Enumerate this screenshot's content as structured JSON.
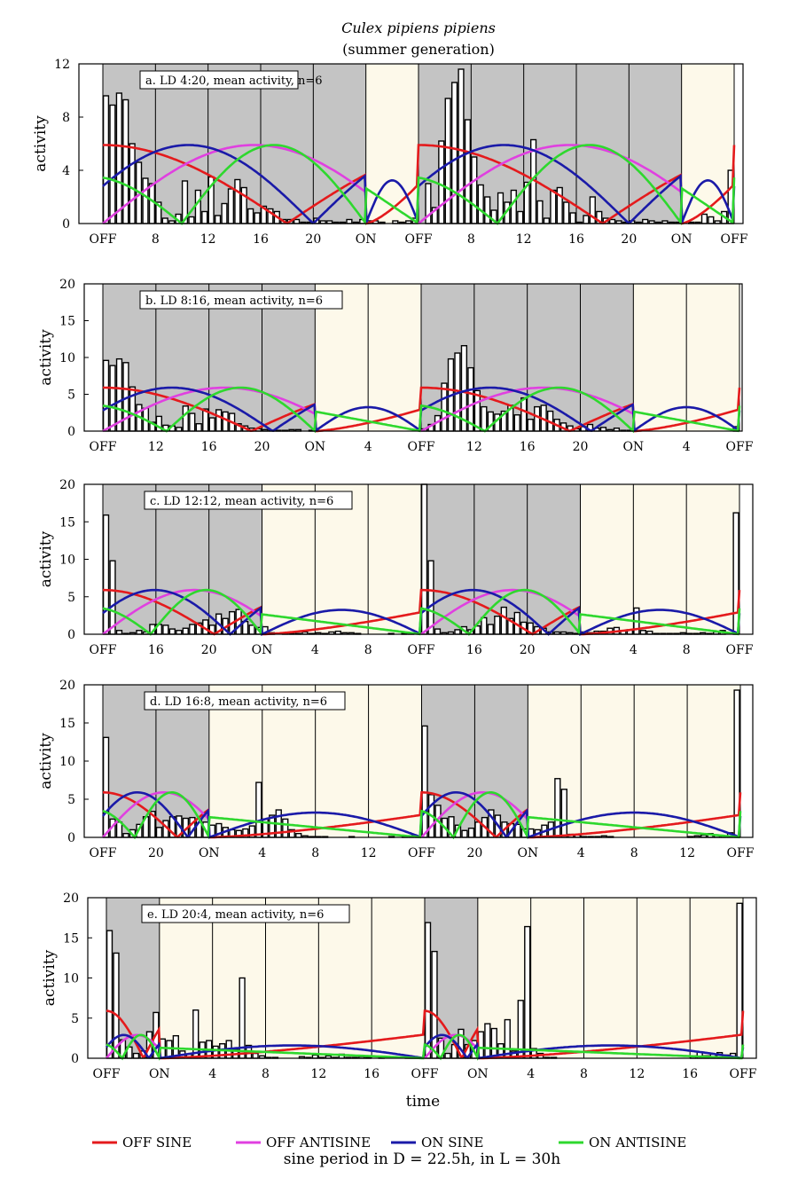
{
  "figure": {
    "title": "Culex pipiens pipiens",
    "subtitle": "(summer generation)",
    "xlabel": "time",
    "footer": "sine period in D = 22.5h, in L = 30h"
  },
  "legend": [
    {
      "label": "OFF SINE",
      "color": "#e41a1c"
    },
    {
      "label": "OFF ANTISINE",
      "color": "#e040e0"
    },
    {
      "label": "ON SINE",
      "color": "#1a1aa8"
    },
    {
      "label": "ON ANTISINE",
      "color": "#2ed82e"
    }
  ],
  "colors": {
    "dark": "#c4c4c4",
    "light": "#fdf9ea",
    "bar_fill": "#ffffff",
    "bar_stroke": "#000000"
  },
  "chart_data": [
    {
      "type": "bar",
      "label": "a. LD 4:20, mean activity, n=6",
      "ylabel": "activity",
      "ylim": [
        0,
        12
      ],
      "yticks": [
        0,
        4,
        8,
        12
      ],
      "hours": 48,
      "dark_hours": [
        [
          0,
          20
        ],
        [
          24,
          44
        ]
      ],
      "xticks": [
        {
          "h": 0,
          "label": "OFF"
        },
        {
          "h": 4,
          "label": "8"
        },
        {
          "h": 8,
          "label": "12"
        },
        {
          "h": 12,
          "label": "16"
        },
        {
          "h": 16,
          "label": "20"
        },
        {
          "h": 20,
          "label": "ON"
        },
        {
          "h": 24,
          "label": "OFF"
        },
        {
          "h": 28,
          "label": "8"
        },
        {
          "h": 32,
          "label": "12"
        },
        {
          "h": 36,
          "label": "16"
        },
        {
          "h": 40,
          "label": "20"
        },
        {
          "h": 44,
          "label": "ON"
        },
        {
          "h": 48,
          "label": "OFF"
        }
      ],
      "activity": [
        9.6,
        8.9,
        9.8,
        9.3,
        6.0,
        4.6,
        3.4,
        3.0,
        1.6,
        0.4,
        0.2,
        0.7,
        3.2,
        0.5,
        2.5,
        0.9,
        3.5,
        0.6,
        1.5,
        2.6,
        3.3,
        2.7,
        1.1,
        0.8,
        1.3,
        1.1,
        0.9,
        0.3,
        0.3,
        0.3,
        0.1,
        0.1,
        0.4,
        0.2,
        0.2,
        0.1,
        0.1,
        0.3,
        0.1,
        0.3,
        0.2,
        0.2,
        0.1,
        0.0,
        0.2,
        0.1,
        0.2,
        0.4,
        0.0,
        3.0,
        1.2,
        6.2,
        9.4,
        10.6,
        11.6,
        7.8,
        5.0,
        2.9,
        2.0,
        1.0,
        2.3,
        1.6,
        2.5,
        0.9,
        3.1,
        6.3,
        1.7,
        0.4,
        2.5,
        2.7,
        1.6,
        0.8,
        0.1,
        0.6,
        2.0,
        0.9,
        0.4,
        0.3,
        0.2,
        0.1,
        0.2,
        0.1,
        0.3,
        0.2,
        0.1,
        0.2,
        0.1,
        0.1,
        0.0,
        0.1,
        0.1,
        0.7,
        0.5,
        0.2,
        0.9,
        4.0
      ],
      "series": {
        "off_sine": 5.9,
        "off_antisine": 5.9,
        "on_sine": 5.9,
        "on_antisine": 5.9
      }
    },
    {
      "type": "bar",
      "label": "b. LD 8:16, mean activity, n=6",
      "ylabel": "activity",
      "ylim": [
        0,
        20
      ],
      "yticks": [
        0,
        5,
        10,
        15,
        20
      ],
      "hours": 48,
      "dark_hours": [
        [
          0,
          16
        ],
        [
          24,
          40
        ]
      ],
      "xticks": [
        {
          "h": 0,
          "label": "OFF"
        },
        {
          "h": 4,
          "label": "12"
        },
        {
          "h": 8,
          "label": "16"
        },
        {
          "h": 12,
          "label": "20"
        },
        {
          "h": 16,
          "label": "ON"
        },
        {
          "h": 20,
          "label": "4"
        },
        {
          "h": 24,
          "label": "OFF"
        },
        {
          "h": 28,
          "label": "12"
        },
        {
          "h": 32,
          "label": "16"
        },
        {
          "h": 36,
          "label": "20"
        },
        {
          "h": 40,
          "label": "ON"
        },
        {
          "h": 44,
          "label": "4"
        },
        {
          "h": 48,
          "label": "OFF"
        }
      ],
      "activity": [
        9.6,
        8.9,
        9.8,
        9.3,
        6.0,
        3.6,
        3.1,
        1.2,
        2.0,
        0.8,
        0.7,
        0.5,
        3.4,
        2.4,
        1.0,
        3.0,
        1.8,
        2.9,
        2.6,
        2.4,
        1.0,
        0.7,
        0.4,
        0.3,
        0.2,
        0.1,
        0.1,
        0.1,
        0.2,
        0.2,
        0.0,
        0.1,
        0.0,
        0.0,
        0.0,
        0.0,
        0.0,
        0.0,
        0.0,
        0.0,
        0.0,
        0.0,
        0.0,
        0.0,
        0.0,
        0.0,
        0.0,
        0.0,
        0.3,
        0.9,
        2.1,
        6.5,
        9.8,
        10.6,
        11.6,
        8.6,
        5.5,
        3.3,
        2.6,
        2.3,
        2.7,
        3.5,
        2.2,
        4.5,
        1.6,
        3.3,
        3.5,
        2.7,
        1.6,
        1.1,
        0.7,
        0.3,
        0.6,
        0.9,
        0.4,
        0.5,
        0.2,
        0.4,
        0.1,
        0.1,
        0.0,
        0.0,
        0.0,
        0.0,
        0.0,
        0.0,
        0.0,
        0.0,
        0.0,
        0.0,
        0.0,
        0.0,
        0.0,
        0.0,
        0.0,
        0.6
      ],
      "series": {
        "off_sine": 5.9,
        "off_antisine": 5.9,
        "on_sine": 5.9,
        "on_antisine": 5.9
      }
    },
    {
      "type": "bar",
      "label": "c. LD 12:12, mean activity, n=6",
      "ylabel": "activity",
      "ylim": [
        0,
        20
      ],
      "yticks": [
        0,
        5,
        10,
        15,
        20
      ],
      "hours": 48,
      "dark_hours": [
        [
          0,
          12
        ],
        [
          24,
          36
        ]
      ],
      "xticks": [
        {
          "h": 0,
          "label": "OFF"
        },
        {
          "h": 4,
          "label": "16"
        },
        {
          "h": 8,
          "label": "20"
        },
        {
          "h": 12,
          "label": "ON"
        },
        {
          "h": 16,
          "label": "4"
        },
        {
          "h": 20,
          "label": "8"
        },
        {
          "h": 24,
          "label": "OFF"
        },
        {
          "h": 28,
          "label": "16"
        },
        {
          "h": 32,
          "label": "20"
        },
        {
          "h": 36,
          "label": "ON"
        },
        {
          "h": 40,
          "label": "4"
        },
        {
          "h": 44,
          "label": "8"
        },
        {
          "h": 48,
          "label": "OFF"
        }
      ],
      "activity": [
        15.9,
        9.8,
        0.5,
        0.1,
        0.2,
        0.5,
        0.3,
        1.3,
        1.3,
        1.2,
        0.7,
        0.5,
        0.8,
        1.3,
        1.5,
        1.9,
        1.2,
        2.7,
        2.1,
        3.0,
        3.3,
        1.7,
        1.2,
        0.9,
        1.0,
        0.2,
        0.0,
        0.1,
        0.1,
        0.1,
        0.3,
        0.1,
        0.2,
        0.1,
        0.3,
        0.4,
        0.2,
        0.2,
        0.1,
        0.0,
        0.0,
        0.0,
        0.0,
        0.1,
        0.0,
        0.1,
        0.1,
        0.0,
        20.0,
        9.8,
        0.7,
        0.2,
        0.3,
        0.6,
        1.0,
        0.6,
        1.1,
        2.2,
        1.3,
        2.4,
        3.6,
        2.1,
        2.9,
        1.6,
        1.5,
        1.0,
        0.8,
        0.3,
        0.3,
        0.3,
        0.2,
        0.1,
        0.3,
        0.2,
        0.4,
        0.4,
        0.8,
        0.9,
        0.5,
        0.6,
        3.5,
        0.5,
        0.4,
        0.1,
        0.1,
        0.1,
        0.1,
        0.2,
        0.1,
        0.1,
        0.2,
        0.1,
        0.3,
        0.5,
        0.0,
        16.2
      ],
      "series": {
        "off_sine": 5.9,
        "off_antisine": 5.9,
        "on_sine": 5.9,
        "on_antisine": 5.9
      }
    },
    {
      "type": "bar",
      "label": "d. LD 16:8, mean activity, n=6",
      "ylabel": "activity",
      "ylim": [
        0,
        20
      ],
      "yticks": [
        0,
        5,
        10,
        15,
        20
      ],
      "hours": 48,
      "dark_hours": [
        [
          0,
          8
        ],
        [
          24,
          32
        ]
      ],
      "xticks": [
        {
          "h": 0,
          "label": "OFF"
        },
        {
          "h": 4,
          "label": "20"
        },
        {
          "h": 8,
          "label": "ON"
        },
        {
          "h": 12,
          "label": "4"
        },
        {
          "h": 16,
          "label": "8"
        },
        {
          "h": 20,
          "label": "12"
        },
        {
          "h": 24,
          "label": "OFF"
        },
        {
          "h": 28,
          "label": "20"
        },
        {
          "h": 32,
          "label": "ON"
        },
        {
          "h": 36,
          "label": "4"
        },
        {
          "h": 40,
          "label": "8"
        },
        {
          "h": 44,
          "label": "12"
        },
        {
          "h": 48,
          "label": "OFF"
        }
      ],
      "activity": [
        13.1,
        2.4,
        2.0,
        0.5,
        1.0,
        1.7,
        2.7,
        3.4,
        1.3,
        2.2,
        2.7,
        2.8,
        2.5,
        2.6,
        2.4,
        2.0,
        1.6,
        1.8,
        1.3,
        1.0,
        0.9,
        1.1,
        1.5,
        7.2,
        2.4,
        2.9,
        3.6,
        2.4,
        1.0,
        0.5,
        0.2,
        0.1,
        0.1,
        0.1,
        0.0,
        0.0,
        0.0,
        0.1,
        0.0,
        0.0,
        0.0,
        0.0,
        0.0,
        0.1,
        0.0,
        0.1,
        0.2,
        0.1,
        14.6,
        5.6,
        4.2,
        2.5,
        2.7,
        1.6,
        0.9,
        1.2,
        2.0,
        2.6,
        3.6,
        2.9,
        2.0,
        1.8,
        1.7,
        1.1,
        1.1,
        1.0,
        1.6,
        2.0,
        7.7,
        6.3,
        0.4,
        0.3,
        0.1,
        0.1,
        0.1,
        0.2,
        0.1,
        0.0,
        0.0,
        0.0,
        0.0,
        0.0,
        0.0,
        0.0,
        0.0,
        0.0,
        0.0,
        0.0,
        0.1,
        0.2,
        0.3,
        0.5,
        0.3,
        0.2,
        0.6,
        19.3
      ],
      "series": {
        "off_sine": 5.9,
        "off_antisine": 5.9,
        "on_sine": 5.9,
        "on_antisine": 5.9
      }
    },
    {
      "type": "bar",
      "label": "e. LD 20:4, mean activity, n=6",
      "ylabel": "activity",
      "xlabel": "time",
      "ylim": [
        0,
        20
      ],
      "yticks": [
        0,
        5,
        10,
        15,
        20
      ],
      "hours": 48,
      "dark_hours": [
        [
          0,
          4
        ],
        [
          24,
          28
        ]
      ],
      "xticks": [
        {
          "h": 0,
          "label": "OFF"
        },
        {
          "h": 4,
          "label": "ON"
        },
        {
          "h": 8,
          "label": "4"
        },
        {
          "h": 12,
          "label": "8"
        },
        {
          "h": 16,
          "label": "12"
        },
        {
          "h": 20,
          "label": "16"
        },
        {
          "h": 24,
          "label": "OFF"
        },
        {
          "h": 28,
          "label": "ON"
        },
        {
          "h": 32,
          "label": "4"
        },
        {
          "h": 36,
          "label": "8"
        },
        {
          "h": 40,
          "label": "12"
        },
        {
          "h": 44,
          "label": "16"
        },
        {
          "h": 48,
          "label": "OFF"
        }
      ],
      "activity": [
        15.9,
        13.1,
        2.3,
        1.4,
        0.6,
        0.9,
        3.3,
        5.7,
        2.4,
        2.2,
        2.8,
        0.9,
        0.5,
        6.0,
        2.0,
        2.2,
        1.5,
        1.8,
        2.2,
        1.1,
        10.0,
        1.6,
        0.6,
        0.3,
        0.1,
        0.1,
        0.0,
        0.0,
        0.0,
        0.2,
        0.1,
        0.4,
        0.1,
        0.3,
        0.1,
        0.5,
        0.1,
        0.1,
        0.2,
        0.1,
        0.0,
        0.1,
        0.0,
        0.0,
        0.0,
        0.1,
        0.1,
        0.1,
        16.9,
        13.3,
        2.5,
        0.6,
        1.7,
        3.6,
        1.7,
        2.2,
        3.3,
        4.3,
        3.7,
        1.8,
        4.8,
        0.9,
        7.2,
        16.4,
        1.2,
        0.6,
        0.1,
        0.1,
        0.0,
        0.0,
        0.0,
        0.0,
        0.0,
        0.0,
        0.0,
        0.0,
        0.0,
        0.0,
        0.0,
        0.0,
        0.0,
        0.0,
        0.0,
        0.0,
        0.0,
        0.0,
        0.0,
        0.0,
        0.3,
        0.8,
        0.3,
        0.5,
        0.7,
        0.4,
        0.6,
        19.3
      ],
      "series": {
        "off_sine": 5.9,
        "off_antisine": 2.9,
        "on_sine": 2.9,
        "on_antisine": 2.9
      }
    }
  ]
}
